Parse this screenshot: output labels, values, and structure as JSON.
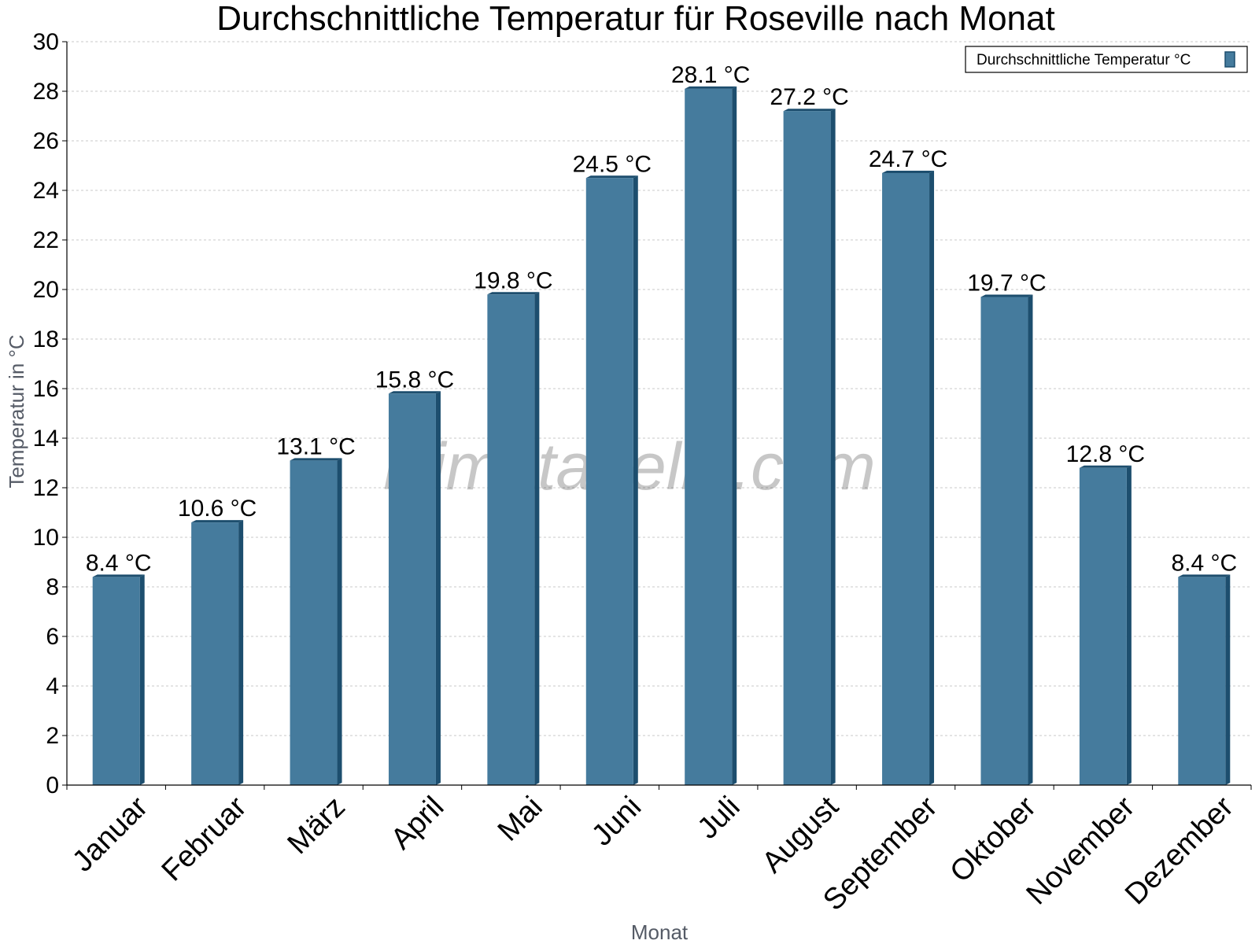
{
  "chart_data": {
    "type": "bar",
    "title": "Durchschnittliche Temperatur für Roseville nach Monat",
    "xlabel": "Monat",
    "ylabel": "Temperatur in °C",
    "ylim": [
      0,
      30
    ],
    "yticks": [
      "0",
      "2",
      "4",
      "6",
      "8",
      "10",
      "12",
      "14",
      "16",
      "18",
      "20",
      "22",
      "24",
      "26",
      "28",
      "30"
    ],
    "grid": true,
    "legend_position": "top-right",
    "categories": [
      "Januar",
      "Februar",
      "März",
      "April",
      "Mai",
      "Juni",
      "Juli",
      "August",
      "September",
      "Oktober",
      "November",
      "Dezember"
    ],
    "series": [
      {
        "name": "Durchschnittliche Temperatur °C",
        "values": [
          8.4,
          10.6,
          13.1,
          15.8,
          19.8,
          24.5,
          28.1,
          27.2,
          24.7,
          19.7,
          12.8,
          8.4
        ],
        "data_labels": [
          "8.4 °C",
          "10.6 °C",
          "13.1 °C",
          "15.8 °C",
          "19.8 °C",
          "24.5 °C",
          "28.1 °C",
          "27.2 °C",
          "24.7 °C",
          "19.7 °C",
          "12.8 °C",
          "8.4 °C"
        ],
        "color": "#457b9d",
        "side_color": "#1d4e6e"
      }
    ]
  },
  "watermark": "klimatabelle.com",
  "colors": {
    "grid": "#c8c8c8",
    "axis": "#000000",
    "bar": "#457b9d",
    "bar_side": "#1d4e6e"
  }
}
